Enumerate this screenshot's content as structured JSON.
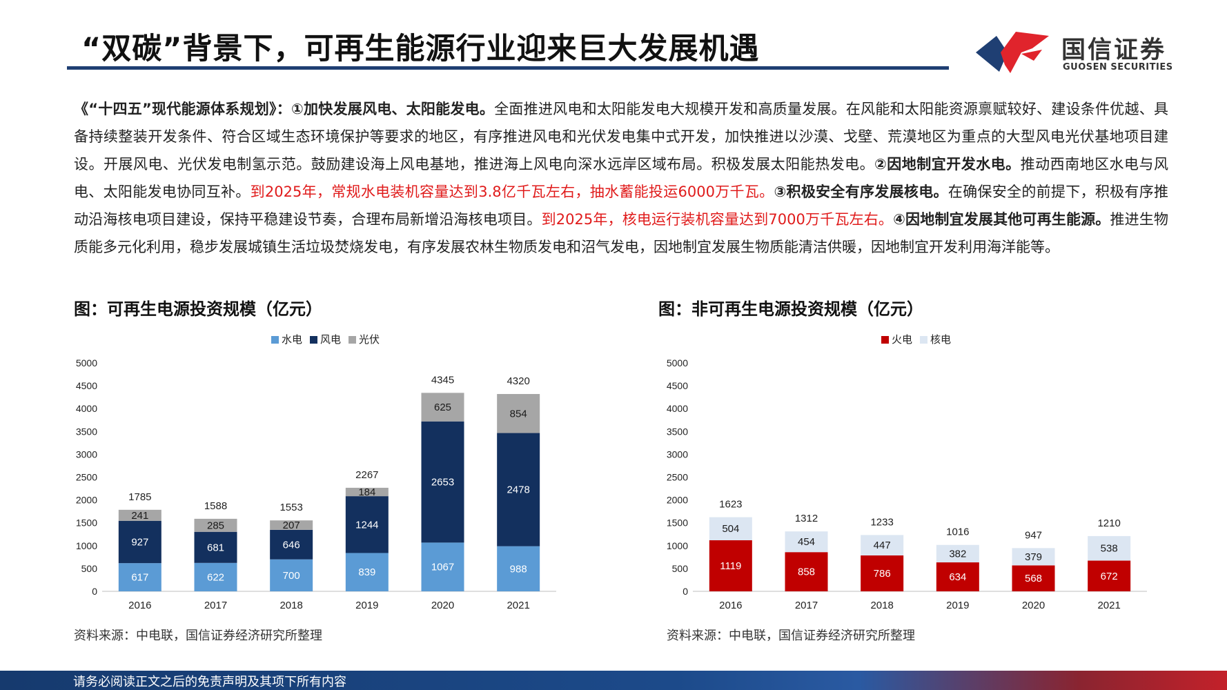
{
  "header": {
    "title": "“双碳”背景下，可再生能源行业迎来巨大发展机遇",
    "logo_cn": "国信证券",
    "logo_en": "GUOSEN SECURITIES"
  },
  "intro": {
    "s1": "《“十四五”现代能源体系规划》：①加快发展风电、太阳能发电。",
    "s2": "全面推进风电和太阳能发电大规模开发和高质量发展。在风能和太阳能资源禀赋较好、建设条件优越、具备持续整装开发条件、符合区域生态环境保护等要求的地区，有序推进风电和光伏发电集中式开发，加快推进以沙漠、戈壁、荒漠地区为重点的大型风电光伏基地项目建设。开展风电、光伏发电制氢示范。鼓励建设海上风电基地，推进海上风电向深水远岸区域布局。积极发展太阳能热发电。",
    "s3": "②因地制宜开发水电。",
    "s4": "推动西南地区水电与风电、太阳能发电协同互补。",
    "s5": "到2025年，常规水电装机容量达到3.8亿千瓦左右，抽水蓄能投运6000万千瓦。",
    "s6": "③积极安全有序发展核电。",
    "s7": "在确保安全的前提下，积极有序推动沿海核电项目建设，保持平稳建设节奏，合理布局新增沿海核电项目。",
    "s8": "到2025年，核电运行装机容量达到7000万千瓦左右。",
    "s9": "④因地制宜发展其他可再生能源。",
    "s10": "推进生物质能多元化利用，稳步发展城镇生活垃圾焚烧发电，有序发展农林生物质发电和沼气发电，因地制宜发展生物质能清洁供暖，因地制宜开发利用海洋能等。"
  },
  "fig_left": {
    "title": "图：可再生电源投资规模（亿元）",
    "source": "资料来源：中电联，国信证券经济研究所整理"
  },
  "fig_right": {
    "title": "图：非可再生电源投资规模（亿元）",
    "source": "资料来源：中电联，国信证券经济研究所整理"
  },
  "footer": {
    "text": "请务必阅读正文之后的免责声明及其项下所有内容"
  },
  "colors": {
    "hydro": "#5b9bd5",
    "wind": "#13305e",
    "solar": "#a6a6a6",
    "thermal": "#c00000",
    "nuclear": "#dce6f2",
    "brand_blue": "#1f3f73",
    "brand_red": "#e0242c"
  },
  "chart_data": [
    {
      "type": "bar",
      "stacked": true,
      "title": "图：可再生电源投资规模（亿元）",
      "categories": [
        "2016",
        "2017",
        "2018",
        "2019",
        "2020",
        "2021"
      ],
      "series": [
        {
          "name": "水电",
          "values": [
            617,
            622,
            700,
            839,
            1067,
            988
          ],
          "color": "#5b9bd5",
          "label_color": "#ffffff"
        },
        {
          "name": "风电",
          "values": [
            927,
            681,
            646,
            1244,
            2653,
            2478
          ],
          "color": "#13305e",
          "label_color": "#ffffff"
        },
        {
          "name": "光伏",
          "values": [
            241,
            285,
            207,
            184,
            625,
            854
          ],
          "color": "#a6a6a6",
          "label_color": "#1a1a1a"
        }
      ],
      "totals": [
        1785,
        1588,
        1553,
        2267,
        4345,
        4320
      ],
      "ylim": [
        0,
        5000
      ],
      "yticks": [
        "0",
        "500",
        "1000",
        "1500",
        "2000",
        "2500",
        "3000",
        "3500",
        "4000",
        "4500",
        "5000"
      ],
      "legend_position": "top-center"
    },
    {
      "type": "bar",
      "stacked": true,
      "title": "图：非可再生电源投资规模（亿元）",
      "categories": [
        "2016",
        "2017",
        "2018",
        "2019",
        "2020",
        "2021"
      ],
      "series": [
        {
          "name": "火电",
          "values": [
            1119,
            858,
            786,
            634,
            568,
            672
          ],
          "color": "#c00000",
          "label_color": "#ffffff"
        },
        {
          "name": "核电",
          "values": [
            504,
            454,
            447,
            382,
            379,
            538
          ],
          "color": "#dce6f2",
          "label_color": "#1a1a1a"
        }
      ],
      "totals": [
        1623,
        1312,
        1233,
        1016,
        947,
        1210
      ],
      "ylim": [
        0,
        5000
      ],
      "yticks": [
        "0",
        "500",
        "1000",
        "1500",
        "2000",
        "2500",
        "3000",
        "3500",
        "4000",
        "4500",
        "5000"
      ],
      "legend_position": "top-center"
    }
  ]
}
